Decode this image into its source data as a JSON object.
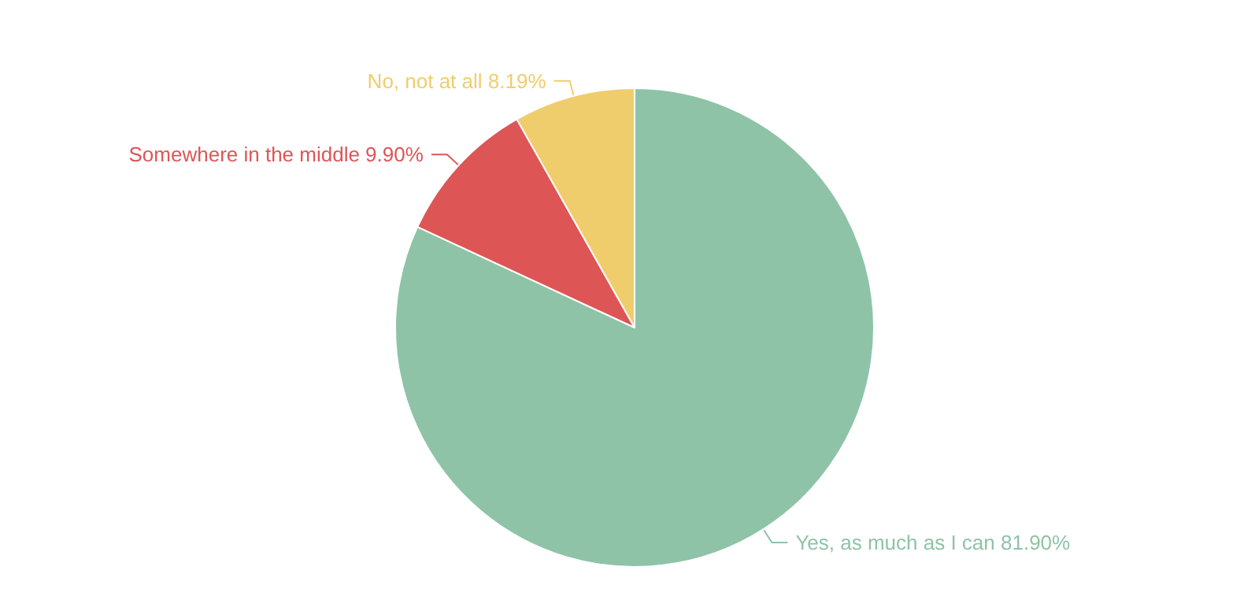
{
  "chart_data": {
    "type": "pie",
    "categories": [
      "Yes, as much as I can",
      "Somewhere in the middle",
      "No, not at all"
    ],
    "values": [
      81.9,
      9.9,
      8.19
    ],
    "colors": [
      "#8fc3a7",
      "#de5556",
      "#f0cd6c"
    ],
    "value_labels": [
      "81.90%",
      "9.90%",
      "8.19%"
    ],
    "legend": false
  }
}
